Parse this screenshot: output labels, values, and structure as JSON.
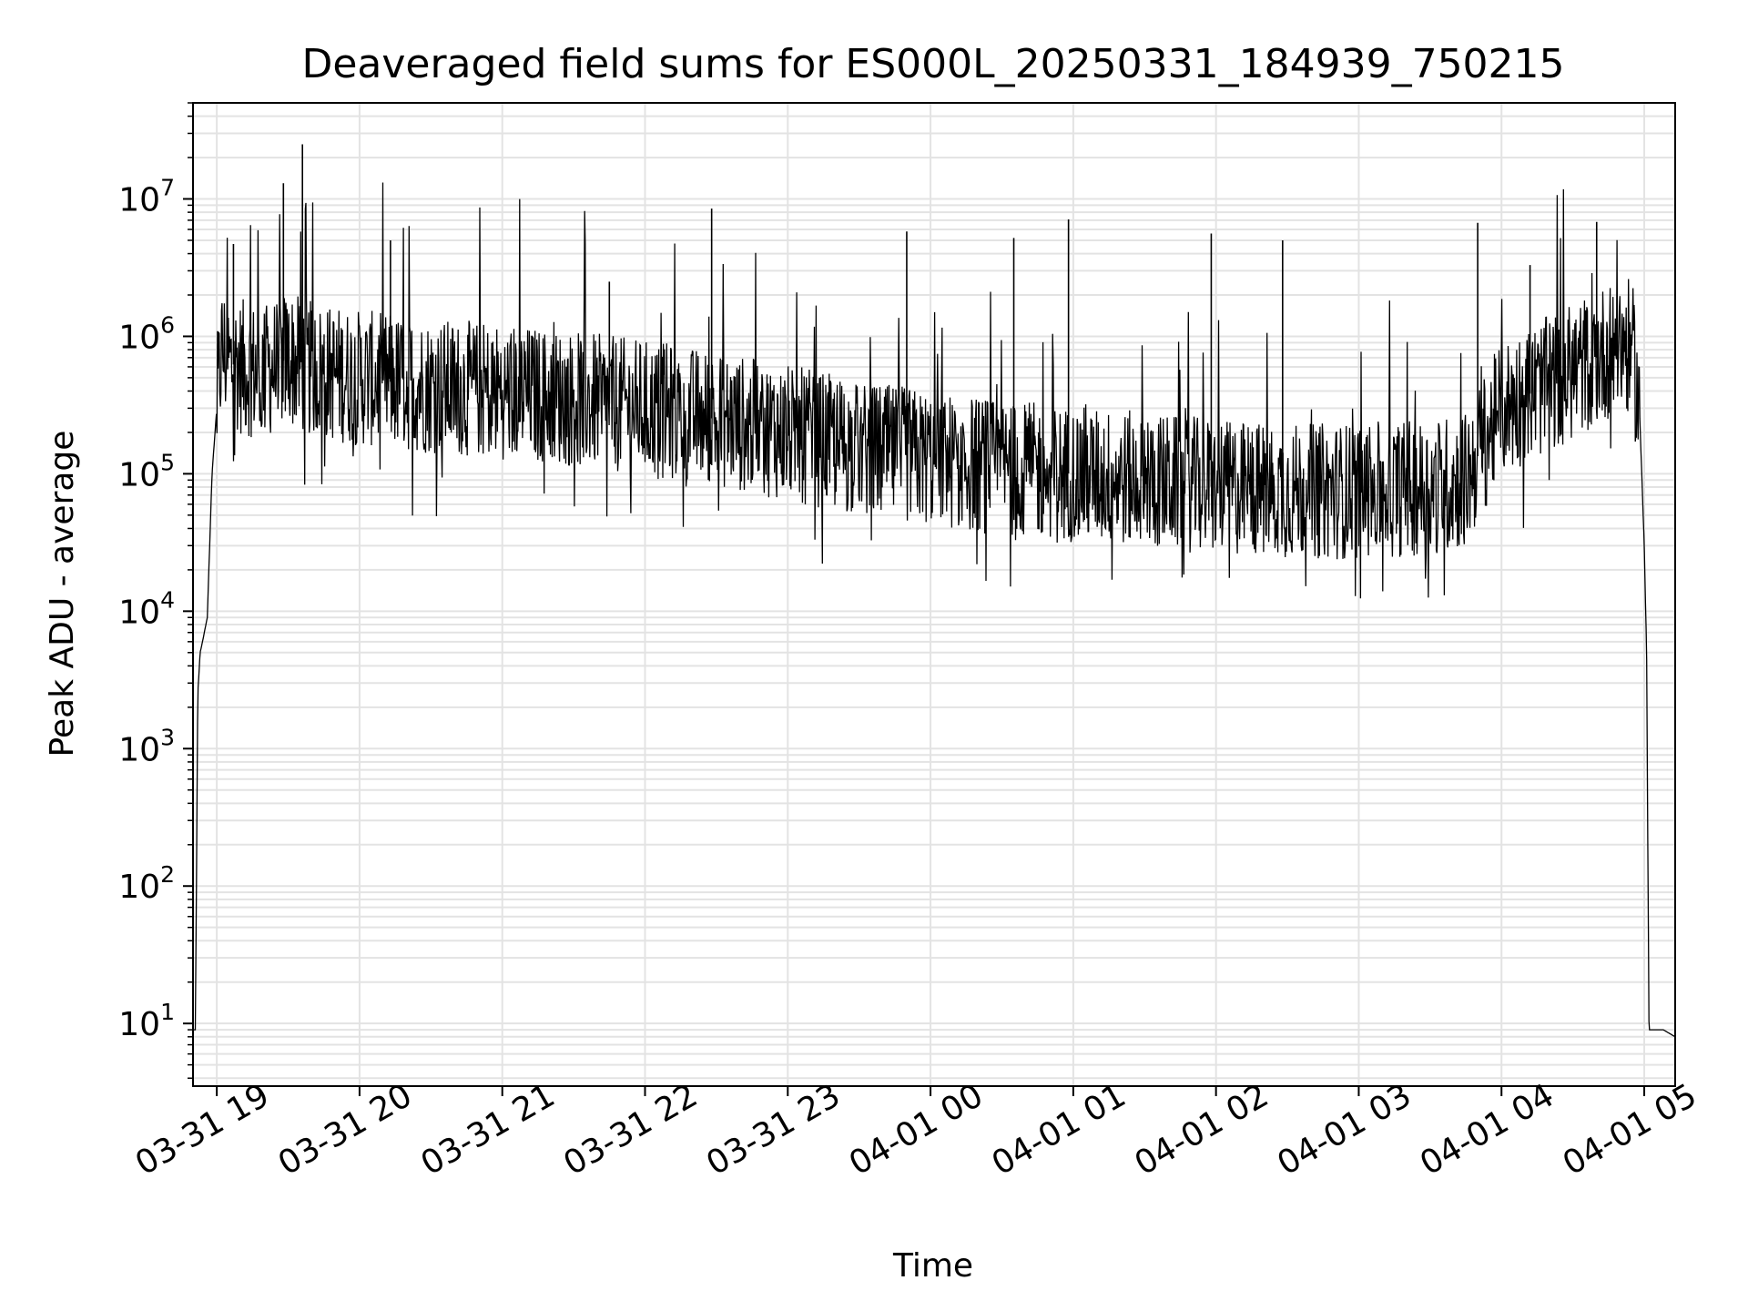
{
  "chart_data": {
    "type": "line",
    "title": "Deaveraged field sums for ES000L_20250331_184939_750215",
    "xlabel": "Time",
    "ylabel": "Peak ADU - average",
    "x_scale": "time",
    "y_scale": "log",
    "xlim": [
      "2025-03-31 18:50",
      "2025-04-01 05:13"
    ],
    "ylim": [
      3.5,
      50000000
    ],
    "grid": true,
    "legend": "none",
    "line_color": "#000000",
    "grid_color": "#e3e3e3",
    "x_ticks": [
      {
        "value": "2025-03-31 19:00",
        "label": "03-31 19"
      },
      {
        "value": "2025-03-31 20:00",
        "label": "03-31 20"
      },
      {
        "value": "2025-03-31 21:00",
        "label": "03-31 21"
      },
      {
        "value": "2025-03-31 22:00",
        "label": "03-31 22"
      },
      {
        "value": "2025-03-31 23:00",
        "label": "03-31 23"
      },
      {
        "value": "2025-04-01 00:00",
        "label": "04-01 00"
      },
      {
        "value": "2025-04-01 01:00",
        "label": "04-01 01"
      },
      {
        "value": "2025-04-01 02:00",
        "label": "04-01 02"
      },
      {
        "value": "2025-04-01 03:00",
        "label": "04-01 03"
      },
      {
        "value": "2025-04-01 04:00",
        "label": "04-01 04"
      },
      {
        "value": "2025-04-01 05:00",
        "label": "04-01 05"
      }
    ],
    "y_ticks": [
      {
        "value": 10,
        "base": "10",
        "exp": "1"
      },
      {
        "value": 100,
        "base": "10",
        "exp": "2"
      },
      {
        "value": 1000,
        "base": "10",
        "exp": "3"
      },
      {
        "value": 10000,
        "base": "10",
        "exp": "4"
      },
      {
        "value": 100000,
        "base": "10",
        "exp": "5"
      },
      {
        "value": 1000000,
        "base": "10",
        "exp": "6"
      },
      {
        "value": 10000000,
        "base": "10",
        "exp": "7"
      }
    ],
    "series": [
      {
        "x": [
          "2025-03-31 18:50",
          "2025-03-31 18:51",
          "2025-03-31 18:52",
          "2025-03-31 18:53",
          "2025-03-31 18:54",
          "2025-03-31 18:56",
          "2025-03-31 18:58",
          "2025-03-31 19:00",
          "2025-03-31 19:02",
          "2025-03-31 19:04",
          "2025-03-31 19:06",
          "2025-03-31 19:08",
          "2025-03-31 19:10",
          "2025-03-31 19:20",
          "2025-03-31 19:30",
          "2025-03-31 19:36",
          "2025-03-31 19:45",
          "2025-03-31 20:00",
          "2025-03-31 20:20",
          "2025-03-31 20:40",
          "2025-03-31 21:00",
          "2025-03-31 21:30",
          "2025-03-31 22:00",
          "2025-03-31 22:30",
          "2025-03-31 23:00",
          "2025-03-31 23:30",
          "2025-04-01 00:00",
          "2025-04-01 00:30",
          "2025-04-01 01:00",
          "2025-04-01 01:30",
          "2025-04-01 02:00",
          "2025-04-01 02:30",
          "2025-04-01 03:00",
          "2025-04-01 03:30",
          "2025-04-01 03:45",
          "2025-04-01 04:00",
          "2025-04-01 04:20",
          "2025-04-01 04:40",
          "2025-04-01 04:50",
          "2025-04-01 04:55",
          "2025-04-01 04:58",
          "2025-04-01 05:00",
          "2025-04-01 05:01",
          "2025-04-01 05:02",
          "2025-04-01 05:04",
          "2025-04-01 05:08",
          "2025-04-01 05:13"
        ],
        "values": [
          9,
          9,
          2500,
          5000,
          6000,
          9000,
          100000,
          300000,
          800000,
          700000,
          600000,
          650000,
          600000,
          550000,
          700000,
          600000,
          550000,
          500000,
          450000,
          420000,
          400000,
          350000,
          300000,
          250000,
          200000,
          150000,
          130000,
          110000,
          100000,
          90000,
          80000,
          75000,
          75000,
          80000,
          90000,
          300000,
          450000,
          700000,
          900000,
          800000,
          300000,
          30000,
          5000,
          9,
          9,
          9,
          8
        ]
      }
    ],
    "spikes": [
      {
        "x": "2025-03-31 19:28",
        "y": 13000000
      },
      {
        "x": "2025-03-31 19:36",
        "y": 25000000
      },
      {
        "x": "2025-03-31 19:07",
        "y": 4700000
      },
      {
        "x": "2025-03-31 20:13",
        "y": 5000000
      },
      {
        "x": "2025-03-31 21:45",
        "y": 2500000
      },
      {
        "x": "2025-03-31 22:28",
        "y": 8500000
      },
      {
        "x": "2025-03-31 23:50",
        "y": 5800000
      },
      {
        "x": "2025-04-01 00:35",
        "y": 5200000
      },
      {
        "x": "2025-04-01 00:58",
        "y": 7100000
      },
      {
        "x": "2025-04-01 01:58",
        "y": 5600000
      },
      {
        "x": "2025-04-01 02:28",
        "y": 5000000
      },
      {
        "x": "2025-04-01 03:50",
        "y": 6700000
      },
      {
        "x": "2025-04-01 04:12",
        "y": 3300000
      },
      {
        "x": "2025-04-01 04:40",
        "y": 6800000
      }
    ]
  }
}
